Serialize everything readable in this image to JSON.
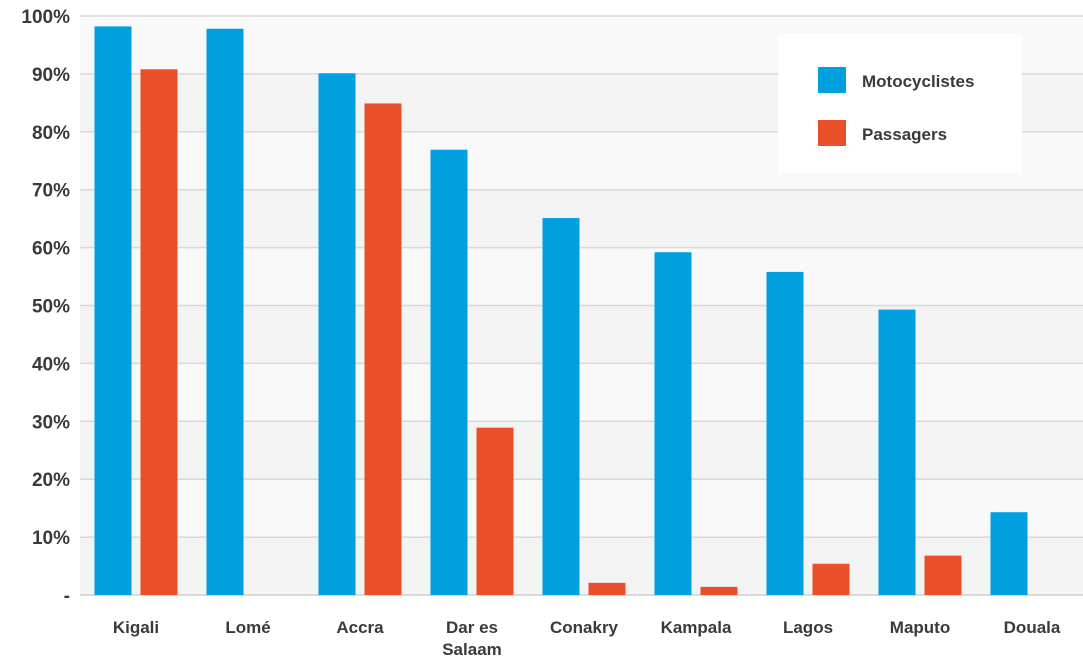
{
  "chart_data": {
    "type": "bar",
    "categories": [
      "Kigali",
      "Lomé",
      "Accra",
      "Dar es Salaam",
      "Conakry",
      "Kampala",
      "Lagos",
      "Maputo",
      "Douala"
    ],
    "category_lines": [
      [
        "Kigali"
      ],
      [
        "Lomé"
      ],
      [
        "Accra"
      ],
      [
        "Dar es",
        "Salaam"
      ],
      [
        "Conakry"
      ],
      [
        "Kampala"
      ],
      [
        "Lagos"
      ],
      [
        "Maputo"
      ],
      [
        "Douala"
      ]
    ],
    "series": [
      {
        "name": "Motocyclistes",
        "color": "#009fe0",
        "values": [
          98.2,
          97.8,
          90.1,
          76.9,
          65.1,
          59.2,
          55.8,
          49.3,
          14.3
        ]
      },
      {
        "name": "Passagers",
        "color": "#e9502a",
        "values": [
          90.8,
          null,
          84.9,
          28.9,
          2.1,
          1.4,
          5.4,
          6.8,
          null
        ]
      }
    ],
    "ylim": [
      0,
      100
    ],
    "yticks": [
      0,
      10,
      20,
      30,
      40,
      50,
      60,
      70,
      80,
      90,
      100
    ],
    "ytick_labels": [
      "-",
      "10%",
      "20%",
      "30%",
      "40%",
      "50%",
      "60%",
      "70%",
      "80%",
      "90%",
      "100%"
    ],
    "title": "",
    "xlabel": "",
    "ylabel": "",
    "grid": true,
    "legend_position": "top-right",
    "background_band_colors": [
      "#f3f3f3",
      "#f9f9f9"
    ],
    "gridline_color": "#d9d9d9"
  }
}
